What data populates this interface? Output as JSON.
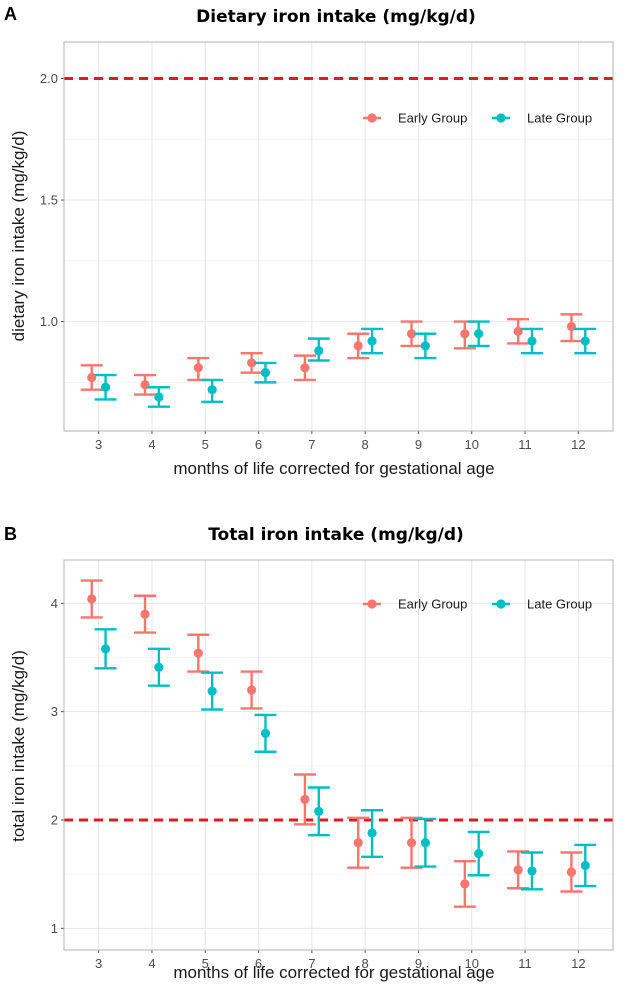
{
  "chart_data": [
    {
      "panel": "A",
      "type": "errorbar",
      "title": "Dietary iron intake (mg/kg/d)",
      "xlabel": "months of life corrected for gestational age",
      "ylabel": "dietary iron intake (mg/kg/d)",
      "x": [
        3,
        4,
        5,
        6,
        7,
        8,
        9,
        10,
        11,
        12
      ],
      "x_tick_labels": [
        "3",
        "4",
        "5",
        "6",
        "7",
        "8",
        "9",
        "10",
        "11",
        "12"
      ],
      "ylim": [
        0.55,
        2.15
      ],
      "yticks": [
        1.0,
        1.5,
        2.0
      ],
      "y_tick_labels": [
        "1.0",
        "1.5",
        "2.0"
      ],
      "reference_line": {
        "y": 2.0,
        "color": "#e31a1c",
        "style": "dashed"
      },
      "legend": {
        "position": "top-right"
      },
      "series": [
        {
          "name": "Early Group",
          "color": "#f8766d",
          "mean": [
            0.77,
            0.74,
            0.81,
            0.83,
            0.81,
            0.9,
            0.95,
            0.95,
            0.96,
            0.98
          ],
          "lower": [
            0.72,
            0.7,
            0.76,
            0.79,
            0.76,
            0.85,
            0.9,
            0.89,
            0.91,
            0.92
          ],
          "upper": [
            0.82,
            0.78,
            0.85,
            0.87,
            0.86,
            0.95,
            1.0,
            1.0,
            1.01,
            1.03
          ]
        },
        {
          "name": "Late Group",
          "color": "#00bfc4",
          "mean": [
            0.73,
            0.69,
            0.72,
            0.79,
            0.88,
            0.92,
            0.9,
            0.95,
            0.92,
            0.92
          ],
          "lower": [
            0.68,
            0.65,
            0.67,
            0.75,
            0.84,
            0.87,
            0.85,
            0.9,
            0.87,
            0.87
          ],
          "upper": [
            0.78,
            0.73,
            0.76,
            0.83,
            0.93,
            0.97,
            0.95,
            1.0,
            0.97,
            0.97
          ]
        }
      ]
    },
    {
      "panel": "B",
      "type": "errorbar",
      "title": "Total iron intake (mg/kg/d)",
      "xlabel": "months of life corrected for gestational age",
      "ylabel": "total iron intake (mg/kg/d)",
      "x": [
        3,
        4,
        5,
        6,
        7,
        8,
        9,
        10,
        11,
        12
      ],
      "x_tick_labels": [
        "3",
        "4",
        "5",
        "6",
        "7",
        "8",
        "9",
        "10",
        "11",
        "12"
      ],
      "ylim": [
        0.8,
        4.4
      ],
      "yticks": [
        1,
        2,
        3,
        4
      ],
      "y_tick_labels": [
        "1",
        "2",
        "3",
        "4"
      ],
      "reference_line": {
        "y": 2.0,
        "color": "#e31a1c",
        "style": "dashed"
      },
      "legend": {
        "position": "top-right"
      },
      "series": [
        {
          "name": "Early Group",
          "color": "#f8766d",
          "mean": [
            4.04,
            3.9,
            3.54,
            3.2,
            2.19,
            1.79,
            1.79,
            1.41,
            1.54,
            1.52
          ],
          "lower": [
            3.87,
            3.73,
            3.37,
            3.03,
            1.96,
            1.56,
            1.56,
            1.2,
            1.37,
            1.34
          ],
          "upper": [
            4.21,
            4.07,
            3.71,
            3.37,
            2.42,
            2.02,
            2.02,
            1.62,
            1.71,
            1.7
          ]
        },
        {
          "name": "Late Group",
          "color": "#00bfc4",
          "mean": [
            3.58,
            3.41,
            3.19,
            2.8,
            2.08,
            1.88,
            1.79,
            1.69,
            1.53,
            1.58
          ],
          "lower": [
            3.4,
            3.24,
            3.02,
            2.63,
            1.86,
            1.66,
            1.57,
            1.49,
            1.36,
            1.39
          ],
          "upper": [
            3.76,
            3.58,
            3.36,
            2.97,
            2.3,
            2.09,
            2.01,
            1.89,
            1.7,
            1.77
          ]
        }
      ]
    }
  ]
}
